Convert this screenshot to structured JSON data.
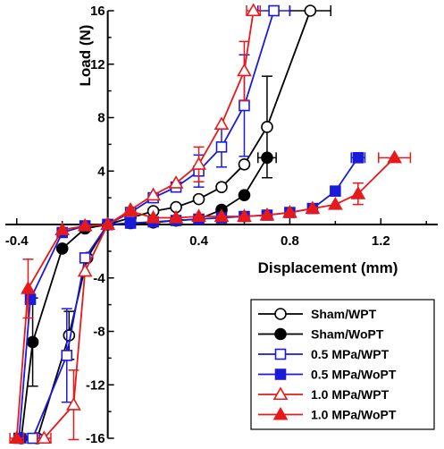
{
  "chart_data": {
    "type": "line",
    "title": "",
    "xlabel": "Displacement (mm)",
    "ylabel": "Load (N)",
    "xlim": [
      -0.45,
      1.45
    ],
    "ylim": [
      -16,
      16
    ],
    "x_ticks": [
      -0.4,
      0.4,
      0.8,
      1.2
    ],
    "x_tick_labels": [
      "-0.4",
      "0.4",
      "0.8",
      "1.2"
    ],
    "y_ticks": [
      -16,
      -12,
      -8,
      -4,
      4,
      8,
      12,
      16
    ],
    "y_tick_labels": [
      "-16",
      "-12",
      "-8",
      "-4",
      "4",
      "8",
      "12",
      "16"
    ],
    "grid": false,
    "legend_position": "bottom-right",
    "series": [
      {
        "name": "Sham/WPT",
        "color": "#000000",
        "marker": "circle",
        "filled": false,
        "points": [
          [
            -0.31,
            -16
          ],
          [
            -0.17,
            -8.3
          ],
          [
            -0.09,
            -2.5
          ],
          [
            0,
            0
          ],
          [
            0.1,
            0.5
          ],
          [
            0.2,
            1
          ],
          [
            0.3,
            1.3
          ],
          [
            0.4,
            1.9
          ],
          [
            0.5,
            2.8
          ],
          [
            0.6,
            4.5
          ],
          [
            0.7,
            7.3
          ],
          [
            0.89,
            16
          ]
        ],
        "xerr": [
          [
            -0.31,
            0.03
          ],
          [
            0.89,
            0.09
          ]
        ],
        "yerr": [
          [
            -0.17,
            1.8
          ],
          [
            0.7,
            3.8
          ]
        ]
      },
      {
        "name": "Sham/WoPT",
        "color": "#000000",
        "marker": "circle",
        "filled": true,
        "points": [
          [
            -0.38,
            -16
          ],
          [
            -0.33,
            -8.8
          ],
          [
            -0.2,
            -1.8
          ],
          [
            -0.1,
            -0.3
          ],
          [
            0,
            0
          ],
          [
            0.1,
            0.1
          ],
          [
            0.2,
            0.15
          ],
          [
            0.3,
            0.3
          ],
          [
            0.4,
            0.4
          ],
          [
            0.5,
            1.1
          ],
          [
            0.6,
            2.2
          ],
          [
            0.7,
            5
          ]
        ],
        "xerr": [
          [
            -0.38,
            0.03
          ],
          [
            0.7,
            0.04
          ]
        ],
        "yerr": [
          [
            -0.33,
            3.3
          ]
        ]
      },
      {
        "name": "0.5 MPa/WPT",
        "color": "#1a1adb",
        "marker": "square",
        "filled": false,
        "points": [
          [
            -0.33,
            -16
          ],
          [
            -0.18,
            -9.8
          ],
          [
            -0.1,
            -2.5
          ],
          [
            0,
            0
          ],
          [
            0.1,
            0.9
          ],
          [
            0.2,
            2
          ],
          [
            0.3,
            2.8
          ],
          [
            0.4,
            4
          ],
          [
            0.5,
            5.8
          ],
          [
            0.6,
            8.9
          ],
          [
            0.73,
            16
          ]
        ],
        "xerr": [
          [
            -0.33,
            0.03
          ],
          [
            0.73,
            0.07
          ]
        ],
        "yerr": [
          [
            -0.18,
            3.5
          ],
          [
            0.4,
            1.2
          ],
          [
            0.5,
            1.5
          ],
          [
            0.6,
            3.8
          ]
        ]
      },
      {
        "name": "0.5 MPa/WoPT",
        "color": "#1a1adb",
        "marker": "square",
        "filled": true,
        "points": [
          [
            -0.39,
            -16
          ],
          [
            -0.34,
            -5.6
          ],
          [
            -0.2,
            -0.6
          ],
          [
            -0.1,
            -0.1
          ],
          [
            0,
            0
          ],
          [
            0.1,
            0.1
          ],
          [
            0.2,
            0.2
          ],
          [
            0.3,
            0.3
          ],
          [
            0.4,
            0.4
          ],
          [
            0.5,
            0.5
          ],
          [
            0.6,
            0.6
          ],
          [
            0.7,
            0.7
          ],
          [
            0.8,
            0.9
          ],
          [
            0.9,
            1.2
          ],
          [
            1.0,
            2.5
          ],
          [
            1.1,
            5
          ]
        ],
        "xerr": [
          [
            -0.39,
            0.02
          ],
          [
            1.1,
            0.03
          ]
        ],
        "yerr": []
      },
      {
        "name": "1.0 MPa/WPT",
        "color": "#e61a1a",
        "marker": "triangle",
        "filled": false,
        "points": [
          [
            -0.28,
            -16
          ],
          [
            -0.15,
            -13.5
          ],
          [
            -0.1,
            -3.5
          ],
          [
            0,
            0
          ],
          [
            0.1,
            1.1
          ],
          [
            0.2,
            2.2
          ],
          [
            0.3,
            3.1
          ],
          [
            0.4,
            4.5
          ],
          [
            0.5,
            7.5
          ],
          [
            0.6,
            11.5
          ],
          [
            0.64,
            16
          ]
        ],
        "xerr": [
          [
            -0.28,
            0.03
          ],
          [
            0.64,
            0.03
          ]
        ],
        "yerr": [
          [
            -0.15,
            2.6
          ],
          [
            0.4,
            1.3
          ],
          [
            0.6,
            2.2
          ]
        ]
      },
      {
        "name": "1.0 MPa/WoPT",
        "color": "#e61a1a",
        "marker": "triangle",
        "filled": true,
        "points": [
          [
            -0.4,
            -16
          ],
          [
            -0.35,
            -4.8
          ],
          [
            -0.2,
            -0.4
          ],
          [
            -0.1,
            -0.1
          ],
          [
            0,
            0
          ],
          [
            0.1,
            1
          ],
          [
            0.2,
            0.5
          ],
          [
            0.3,
            0.5
          ],
          [
            0.4,
            0.6
          ],
          [
            0.5,
            0.6
          ],
          [
            0.6,
            0.6
          ],
          [
            0.7,
            0.7
          ],
          [
            0.8,
            0.9
          ],
          [
            0.9,
            1.2
          ],
          [
            1.0,
            1.5
          ],
          [
            1.1,
            2.3
          ],
          [
            1.26,
            5
          ]
        ],
        "xerr": [
          [
            -0.4,
            0.03
          ],
          [
            1.26,
            0.07
          ]
        ],
        "yerr": [
          [
            -0.35,
            2.2
          ],
          [
            1.1,
            0.8
          ]
        ]
      }
    ]
  }
}
